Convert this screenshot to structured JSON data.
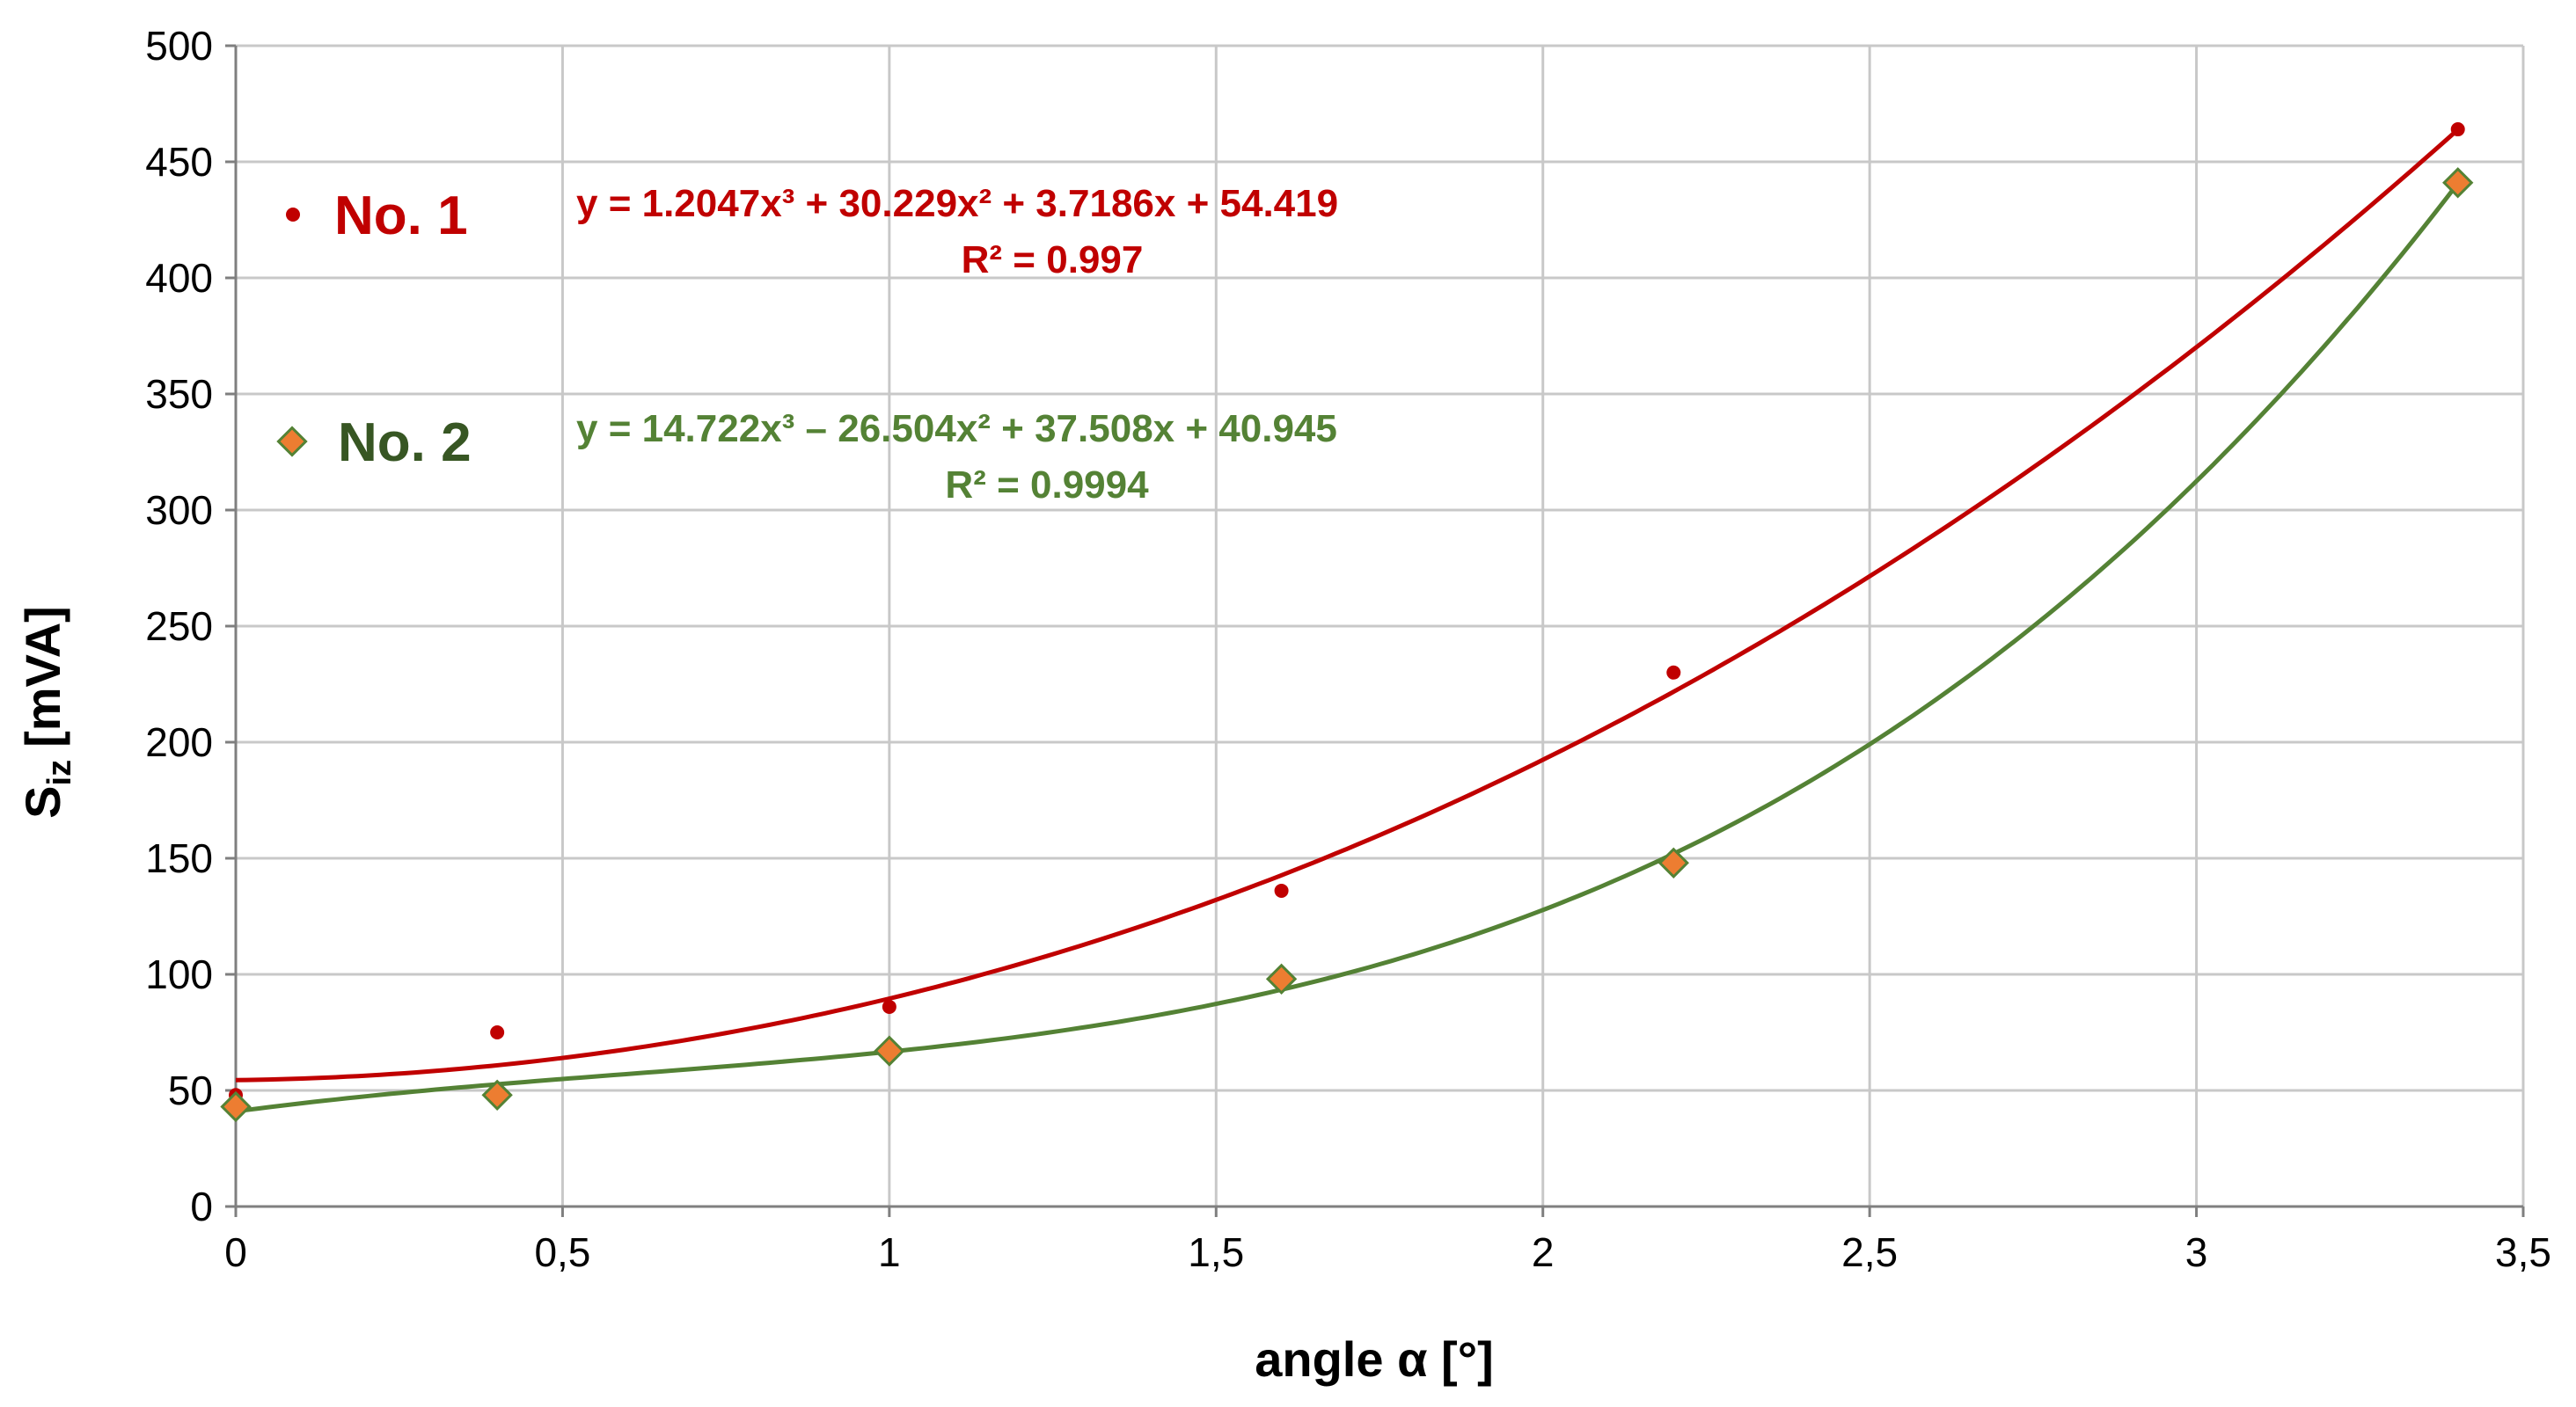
{
  "chart_data": {
    "type": "scatter",
    "xlabel": "angle α [°]",
    "ylabel": "S",
    "ylabel_sub": "iz",
    "ylabel_unit": "[mVA]",
    "xlim": [
      0,
      3.5
    ],
    "ylim": [
      0,
      500
    ],
    "x_ticks": [
      0,
      0.5,
      1,
      1.5,
      2,
      2.5,
      3,
      3.5
    ],
    "x_tick_labels": [
      "0",
      "0,5",
      "1",
      "1,5",
      "2",
      "2,5",
      "3",
      "3,5"
    ],
    "y_ticks": [
      0,
      50,
      100,
      150,
      200,
      250,
      300,
      350,
      400,
      450,
      500
    ],
    "y_tick_labels": [
      "0",
      "50",
      "100",
      "150",
      "200",
      "250",
      "300",
      "350",
      "400",
      "450",
      "500"
    ],
    "grid": true,
    "legend_position": "top-left",
    "series": [
      {
        "name": "No. 1",
        "color": "#c00000",
        "marker": "circle",
        "x": [
          0,
          0.4,
          1,
          1.6,
          2.2,
          3.4
        ],
        "y": [
          48,
          75,
          86,
          136,
          230,
          464
        ],
        "trendline": {
          "type": "polynomial",
          "coefficients": [
            1.2047,
            30.229,
            3.7186,
            54.419
          ],
          "equation_line1": "y = 1.2047x³ + 30.229x² + 3.7186x + 54.419",
          "equation_line2": "R² = 0.997"
        }
      },
      {
        "name": "No. 2",
        "color": "#548235",
        "marker": "diamond",
        "marker_fill": "#ed7d31",
        "x": [
          0,
          0.4,
          1,
          1.6,
          2.2,
          3.4
        ],
        "y": [
          43,
          48,
          67,
          98,
          148,
          441
        ],
        "trendline": {
          "type": "polynomial",
          "coefficients": [
            14.722,
            -26.504,
            37.508,
            40.945
          ],
          "equation_line1": "y = 14.722x³ – 26.504x² + 37.508x + 40.945",
          "equation_line2": "R² = 0.9994"
        }
      }
    ]
  }
}
